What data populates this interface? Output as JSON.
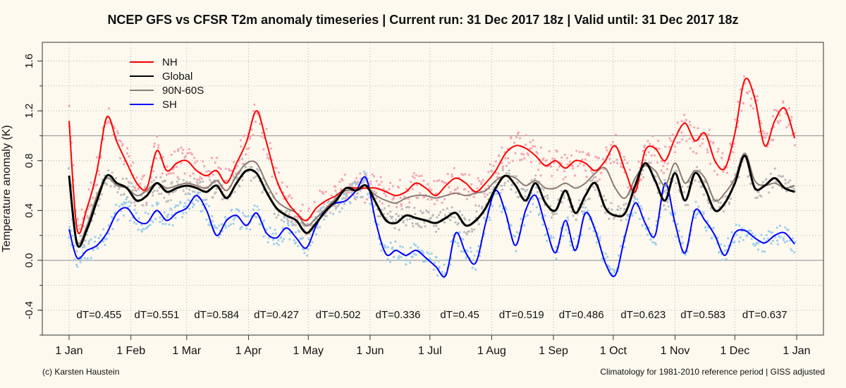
{
  "title": "NCEP GFS vs CFSR T2m anomaly timeseries | Current run: 31 Dec 2017 18z | Valid until: 31 Dec 2017 18z",
  "footer_left": "(c) Karsten Haustein",
  "footer_right": "Climatology for 1981-2010 reference period | GISS adjusted",
  "colors": {
    "NH": "#ff0000",
    "NH_points": "#f4a6b4",
    "Global": "#000000",
    "Global_points": "#bdbdbd",
    "90N-60S": "#8c7b74",
    "SH": "#0000ff",
    "SH_points": "#9fd0ec",
    "grid": "#b0b0b0",
    "frame": "#333333",
    "background": "#fdf9ef"
  },
  "chart_data": {
    "type": "line",
    "title": "NCEP GFS vs CFSR T2m anomaly timeseries | Current run: 31 Dec 2017 18z | Valid until: 31 Dec 2017 18z",
    "ylabel": "Temperature anomaly (K)",
    "xlabel": "",
    "xlim": [
      "2017-01-01",
      "2018-01-01"
    ],
    "ylim": [
      -0.6,
      1.75
    ],
    "x_ticks": [
      "2017-01-01",
      "2017-02-01",
      "2017-03-01",
      "2017-04-01",
      "2017-05-01",
      "2017-06-01",
      "2017-07-01",
      "2017-08-01",
      "2017-09-01",
      "2017-10-01",
      "2017-11-01",
      "2017-12-01",
      "2018-01-01"
    ],
    "x_tick_labels": [
      "1 Jan",
      "1 Feb",
      "1 Mar",
      "1 Apr",
      "1 May",
      "1 Jun",
      "1 Jul",
      "1 Aug",
      "1 Sep",
      "1 Oct",
      "1 Nov",
      "1 Dec",
      "1 Jan"
    ],
    "y_ticks": [
      -0.4,
      0.0,
      0.4,
      0.8,
      1.2,
      1.6
    ],
    "y_tick_labels": [
      "-0.4",
      "0.0",
      "0.4",
      "0.8",
      "1.2",
      "1.6"
    ],
    "hlines": [
      0.0,
      1.0
    ],
    "grid": true,
    "legend_position": "top-left",
    "monthly_dT": [
      {
        "date": "2017-01-16",
        "label": "dT=0.455"
      },
      {
        "date": "2017-02-14",
        "label": "dT=0.551"
      },
      {
        "date": "2017-03-16",
        "label": "dT=0.584"
      },
      {
        "date": "2017-04-15",
        "label": "dT=0.427"
      },
      {
        "date": "2017-05-16",
        "label": "dT=0.502"
      },
      {
        "date": "2017-06-15",
        "label": "dT=0.336"
      },
      {
        "date": "2017-07-16",
        "label": "dT=0.45"
      },
      {
        "date": "2017-08-16",
        "label": "dT=0.519"
      },
      {
        "date": "2017-09-15",
        "label": "dT=0.486"
      },
      {
        "date": "2017-10-16",
        "label": "dT=0.623"
      },
      {
        "date": "2017-11-15",
        "label": "dT=0.583"
      },
      {
        "date": "2017-12-16",
        "label": "dT=0.637"
      }
    ],
    "x": [
      "2017-01-01",
      "2017-01-05",
      "2017-01-10",
      "2017-01-15",
      "2017-01-20",
      "2017-01-25",
      "2017-01-30",
      "2017-02-04",
      "2017-02-09",
      "2017-02-14",
      "2017-02-19",
      "2017-02-24",
      "2017-03-01",
      "2017-03-06",
      "2017-03-11",
      "2017-03-16",
      "2017-03-21",
      "2017-03-26",
      "2017-03-31",
      "2017-04-05",
      "2017-04-10",
      "2017-04-15",
      "2017-04-20",
      "2017-04-25",
      "2017-04-30",
      "2017-05-05",
      "2017-05-10",
      "2017-05-15",
      "2017-05-20",
      "2017-05-25",
      "2017-05-30",
      "2017-06-04",
      "2017-06-09",
      "2017-06-14",
      "2017-06-19",
      "2017-06-24",
      "2017-06-29",
      "2017-07-04",
      "2017-07-09",
      "2017-07-14",
      "2017-07-19",
      "2017-07-24",
      "2017-07-29",
      "2017-08-03",
      "2017-08-08",
      "2017-08-13",
      "2017-08-18",
      "2017-08-23",
      "2017-08-28",
      "2017-09-02",
      "2017-09-07",
      "2017-09-12",
      "2017-09-17",
      "2017-09-22",
      "2017-09-27",
      "2017-10-02",
      "2017-10-07",
      "2017-10-12",
      "2017-10-17",
      "2017-10-22",
      "2017-10-27",
      "2017-11-01",
      "2017-11-06",
      "2017-11-11",
      "2017-11-16",
      "2017-11-21",
      "2017-11-26",
      "2017-12-01",
      "2017-12-06",
      "2017-12-11",
      "2017-12-16",
      "2017-12-21",
      "2017-12-26",
      "2017-12-31"
    ],
    "series": [
      {
        "name": "NH",
        "values": [
          1.12,
          0.25,
          0.42,
          0.72,
          1.15,
          0.95,
          0.78,
          0.62,
          0.58,
          0.88,
          0.72,
          0.78,
          0.8,
          0.72,
          0.68,
          0.72,
          0.62,
          0.78,
          0.95,
          1.2,
          0.95,
          0.65,
          0.48,
          0.38,
          0.32,
          0.42,
          0.48,
          0.52,
          0.58,
          0.58,
          0.58,
          0.58,
          0.55,
          0.52,
          0.55,
          0.62,
          0.58,
          0.52,
          0.6,
          0.66,
          0.62,
          0.55,
          0.62,
          0.72,
          0.86,
          0.92,
          0.9,
          0.84,
          0.76,
          0.8,
          0.74,
          0.8,
          0.78,
          0.72,
          0.8,
          0.92,
          0.72,
          0.55,
          0.88,
          0.9,
          0.8,
          0.98,
          1.1,
          0.96,
          1.02,
          0.8,
          0.74,
          1.02,
          1.45,
          1.3,
          0.92,
          1.12,
          1.22,
          0.98
        ]
      },
      {
        "name": "Global",
        "values": [
          0.68,
          0.13,
          0.25,
          0.48,
          0.68,
          0.62,
          0.58,
          0.48,
          0.52,
          0.62,
          0.55,
          0.58,
          0.6,
          0.58,
          0.55,
          0.6,
          0.5,
          0.62,
          0.72,
          0.7,
          0.55,
          0.42,
          0.36,
          0.32,
          0.22,
          0.3,
          0.4,
          0.48,
          0.58,
          0.56,
          0.6,
          0.46,
          0.32,
          0.3,
          0.36,
          0.34,
          0.32,
          0.3,
          0.34,
          0.38,
          0.28,
          0.32,
          0.42,
          0.58,
          0.68,
          0.6,
          0.48,
          0.62,
          0.46,
          0.4,
          0.56,
          0.38,
          0.52,
          0.62,
          0.42,
          0.36,
          0.38,
          0.6,
          0.78,
          0.64,
          0.48,
          0.7,
          0.48,
          0.7,
          0.58,
          0.4,
          0.46,
          0.62,
          0.84,
          0.58,
          0.6,
          0.66,
          0.58,
          0.55
        ]
      },
      {
        "name": "90N-60S",
        "values": [
          0.66,
          0.15,
          0.28,
          0.52,
          0.66,
          0.6,
          0.58,
          0.52,
          0.56,
          0.62,
          0.58,
          0.6,
          0.62,
          0.6,
          0.58,
          0.64,
          0.56,
          0.68,
          0.78,
          0.78,
          0.62,
          0.48,
          0.42,
          0.38,
          0.28,
          0.34,
          0.42,
          0.5,
          0.56,
          0.56,
          0.58,
          0.52,
          0.48,
          0.46,
          0.5,
          0.52,
          0.52,
          0.5,
          0.52,
          0.54,
          0.52,
          0.54,
          0.56,
          0.64,
          0.68,
          0.66,
          0.6,
          0.64,
          0.58,
          0.58,
          0.62,
          0.58,
          0.62,
          0.7,
          0.74,
          0.58,
          0.5,
          0.66,
          0.76,
          0.72,
          0.6,
          0.78,
          0.62,
          0.72,
          0.66,
          0.48,
          0.54,
          0.66,
          0.86,
          0.64,
          0.6,
          0.62,
          0.58,
          0.6
        ]
      },
      {
        "name": "SH",
        "values": [
          0.25,
          0.02,
          0.08,
          0.12,
          0.22,
          0.38,
          0.42,
          0.32,
          0.3,
          0.4,
          0.32,
          0.38,
          0.42,
          0.52,
          0.4,
          0.2,
          0.32,
          0.36,
          0.28,
          0.38,
          0.22,
          0.18,
          0.26,
          0.18,
          0.1,
          0.28,
          0.42,
          0.46,
          0.48,
          0.56,
          0.66,
          0.3,
          0.05,
          0.08,
          0.04,
          0.08,
          0.02,
          -0.05,
          -0.12,
          0.22,
          0.06,
          -0.02,
          0.3,
          0.56,
          0.38,
          0.12,
          0.4,
          0.52,
          0.28,
          0.06,
          0.32,
          0.08,
          0.38,
          0.24,
          -0.02,
          -0.12,
          0.2,
          0.46,
          0.3,
          0.2,
          0.62,
          0.3,
          0.06,
          0.4,
          0.32,
          0.2,
          0.04,
          0.22,
          0.24,
          0.18,
          0.14,
          0.2,
          0.22,
          0.13
        ]
      }
    ]
  }
}
